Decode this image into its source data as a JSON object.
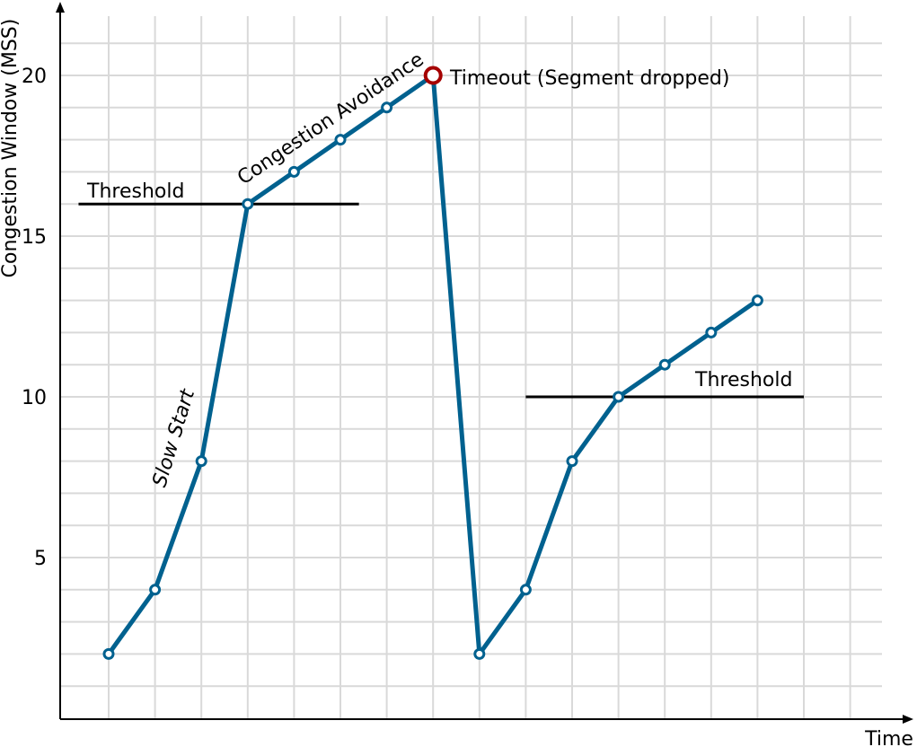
{
  "chart_data": {
    "type": "line",
    "xlabel": "Time",
    "ylabel": "Congestion Window (MSS)",
    "xlim": [
      0,
      18.6
    ],
    "ylim": [
      0,
      22.5
    ],
    "yticks": [
      5,
      10,
      15,
      20
    ],
    "ytick_labels": [
      "5",
      "10",
      "15",
      "20"
    ],
    "grid": true,
    "series": [
      {
        "values": [
          {
            "x": 1,
            "y": 2
          },
          {
            "x": 2,
            "y": 4
          },
          {
            "x": 3,
            "y": 8
          },
          {
            "x": 4,
            "y": 16
          },
          {
            "x": 5,
            "y": 17
          },
          {
            "x": 6,
            "y": 18
          },
          {
            "x": 7,
            "y": 19
          },
          {
            "x": 8,
            "y": 20
          },
          {
            "x": 9,
            "y": 2
          },
          {
            "x": 10,
            "y": 4
          },
          {
            "x": 11,
            "y": 8
          },
          {
            "x": 12,
            "y": 10
          },
          {
            "x": 13,
            "y": 11
          },
          {
            "x": 14,
            "y": 12
          },
          {
            "x": 15,
            "y": 13
          }
        ]
      }
    ],
    "thresholds": [
      {
        "label": "Threshold",
        "y": 16,
        "x_from": 0.35,
        "x_to": 6.4
      },
      {
        "label": "Threshold",
        "y": 10,
        "x_from": 10,
        "x_to": 16
      }
    ],
    "annotations": {
      "slow_start": "Slow Start",
      "congestion_avoidance": "Congestion Avoidance",
      "timeout": "Timeout (Segment dropped)"
    },
    "timeout_point": {
      "x": 8,
      "y": 20
    },
    "colors": {
      "line": "#00618f",
      "grid": "#d9d9d9",
      "timeout": "#a50000",
      "axis": "#000000"
    }
  }
}
